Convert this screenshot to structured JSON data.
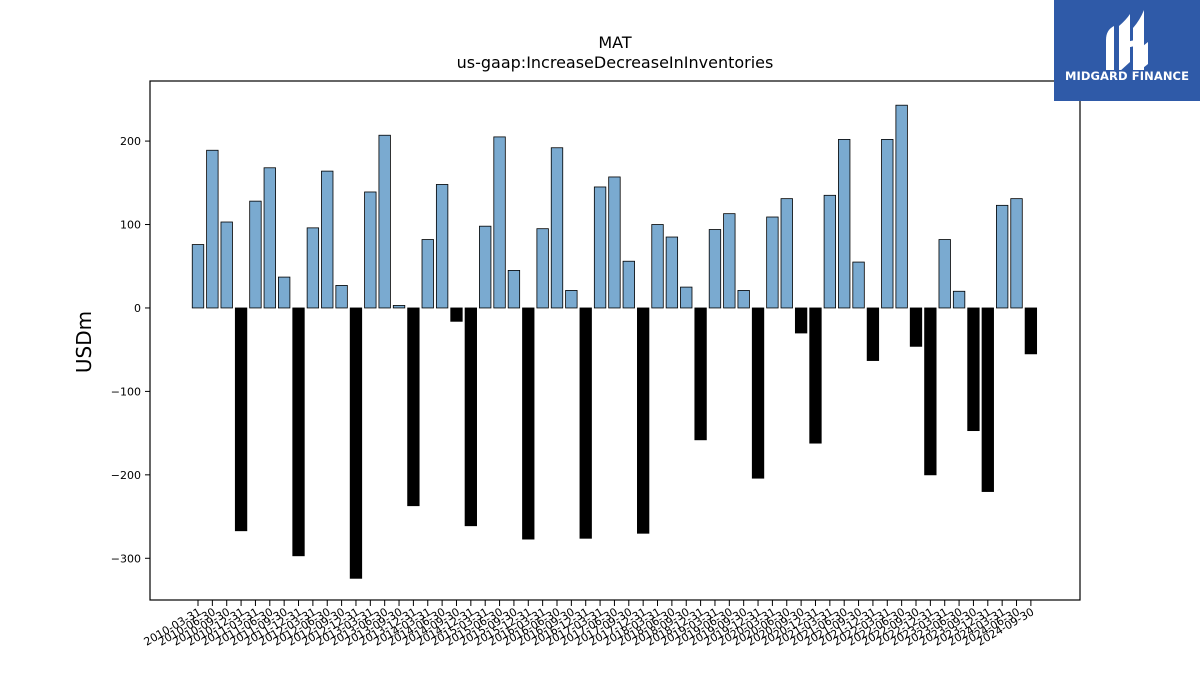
{
  "chart_data": {
    "type": "bar",
    "title": "MAT",
    "subtitle": "us-gaap:IncreaseDecreaseInInventories",
    "xlabel": "",
    "ylabel": "USDm",
    "ylim": [
      -350,
      272
    ],
    "yticks": [
      -300,
      -200,
      -100,
      0,
      100,
      200
    ],
    "grid": false,
    "colors": {
      "positive": "#7aaad0",
      "negative": "#000000",
      "edge": "#000000"
    },
    "categories": [
      "2010-03-31",
      "2010-06-30",
      "2010-09-30",
      "2010-12-31",
      "2011-03-31",
      "2011-06-30",
      "2011-09-30",
      "2011-12-31",
      "2012-03-31",
      "2012-06-30",
      "2012-09-30",
      "2012-12-31",
      "2013-03-31",
      "2013-06-30",
      "2013-09-30",
      "2013-12-31",
      "2014-03-31",
      "2014-06-30",
      "2014-09-30",
      "2014-12-31",
      "2015-03-31",
      "2015-06-30",
      "2015-09-30",
      "2015-12-31",
      "2016-03-31",
      "2016-06-30",
      "2016-09-30",
      "2016-12-31",
      "2017-03-31",
      "2017-06-30",
      "2017-09-30",
      "2017-12-31",
      "2018-03-31",
      "2018-06-30",
      "2018-09-30",
      "2018-12-31",
      "2019-03-31",
      "2019-06-30",
      "2019-09-30",
      "2019-12-31",
      "2020-03-31",
      "2020-06-30",
      "2020-09-30",
      "2020-12-31",
      "2021-03-31",
      "2021-06-30",
      "2021-09-30",
      "2021-12-31",
      "2022-03-31",
      "2022-06-30",
      "2022-09-30",
      "2022-12-31",
      "2023-03-31",
      "2023-06-30",
      "2023-09-30",
      "2023-12-31",
      "2024-03-31",
      "2024-06-30",
      "2024-09-30"
    ],
    "values": [
      76,
      189,
      103,
      -267,
      128,
      168,
      37,
      -297,
      96,
      164,
      27,
      -324,
      139,
      207,
      3,
      -237,
      82,
      148,
      -16,
      -261,
      98,
      205,
      45,
      -277,
      95,
      192,
      21,
      -276,
      145,
      157,
      56,
      -270,
      100,
      85,
      25,
      -158,
      94,
      113,
      21,
      -204,
      109,
      131,
      -30,
      -162,
      135,
      202,
      55,
      -63,
      202,
      243,
      -46,
      -200,
      82,
      20,
      -147,
      -220,
      123,
      131,
      -55
    ]
  },
  "logo": {
    "name": "MIDGARD FINANCE"
  }
}
